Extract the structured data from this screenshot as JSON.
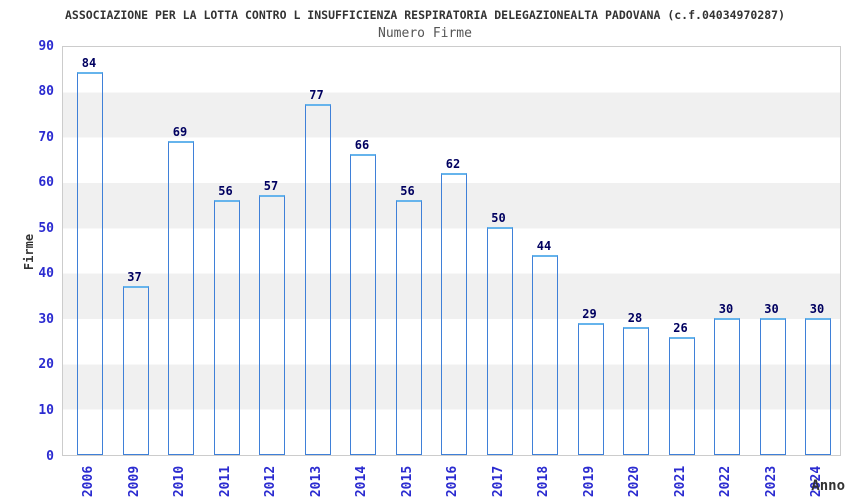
{
  "header": {
    "title": "ASSOCIAZIONE PER LA LOTTA CONTRO L INSUFFICIENZA RESPIRATORIA DELEGAZIONEALTA PADOVANA (c.f.04034970287)",
    "subtitle": "Numero Firme"
  },
  "chart_data": {
    "type": "bar",
    "title": "ASSOCIAZIONE PER LA LOTTA CONTRO L INSUFFICIENZA RESPIRATORIA DELEGAZIONEALTA PADOVANA (c.f.04034970287)",
    "subtitle": "Numero Firme",
    "xlabel": "Anno",
    "ylabel": "Firme",
    "categories": [
      "2006",
      "2009",
      "2010",
      "2011",
      "2012",
      "2013",
      "2014",
      "2015",
      "2016",
      "2017",
      "2018",
      "2019",
      "2020",
      "2021",
      "2022",
      "2023",
      "2024"
    ],
    "values": [
      84,
      37,
      69,
      56,
      57,
      77,
      66,
      56,
      62,
      50,
      44,
      29,
      28,
      26,
      30,
      30,
      30
    ],
    "ylim": [
      0,
      90
    ],
    "yticks": [
      0,
      10,
      20,
      30,
      40,
      50,
      60,
      70,
      80,
      90
    ],
    "legend": "none",
    "grid": "alternating horizontal bands every 10 units",
    "colors": {
      "bar_edge": "#3f80d8",
      "bar_dark": "#1e1e78",
      "bar_light": "#aab2da",
      "bar_top_cap": "#66b4ec",
      "value_label": "#000060",
      "tick_label": "#2b2bd0",
      "title_text": "#333333",
      "subtitle_text": "#555555",
      "band_gray": "#f0f0f0",
      "plot_border": "#cccccc"
    }
  }
}
